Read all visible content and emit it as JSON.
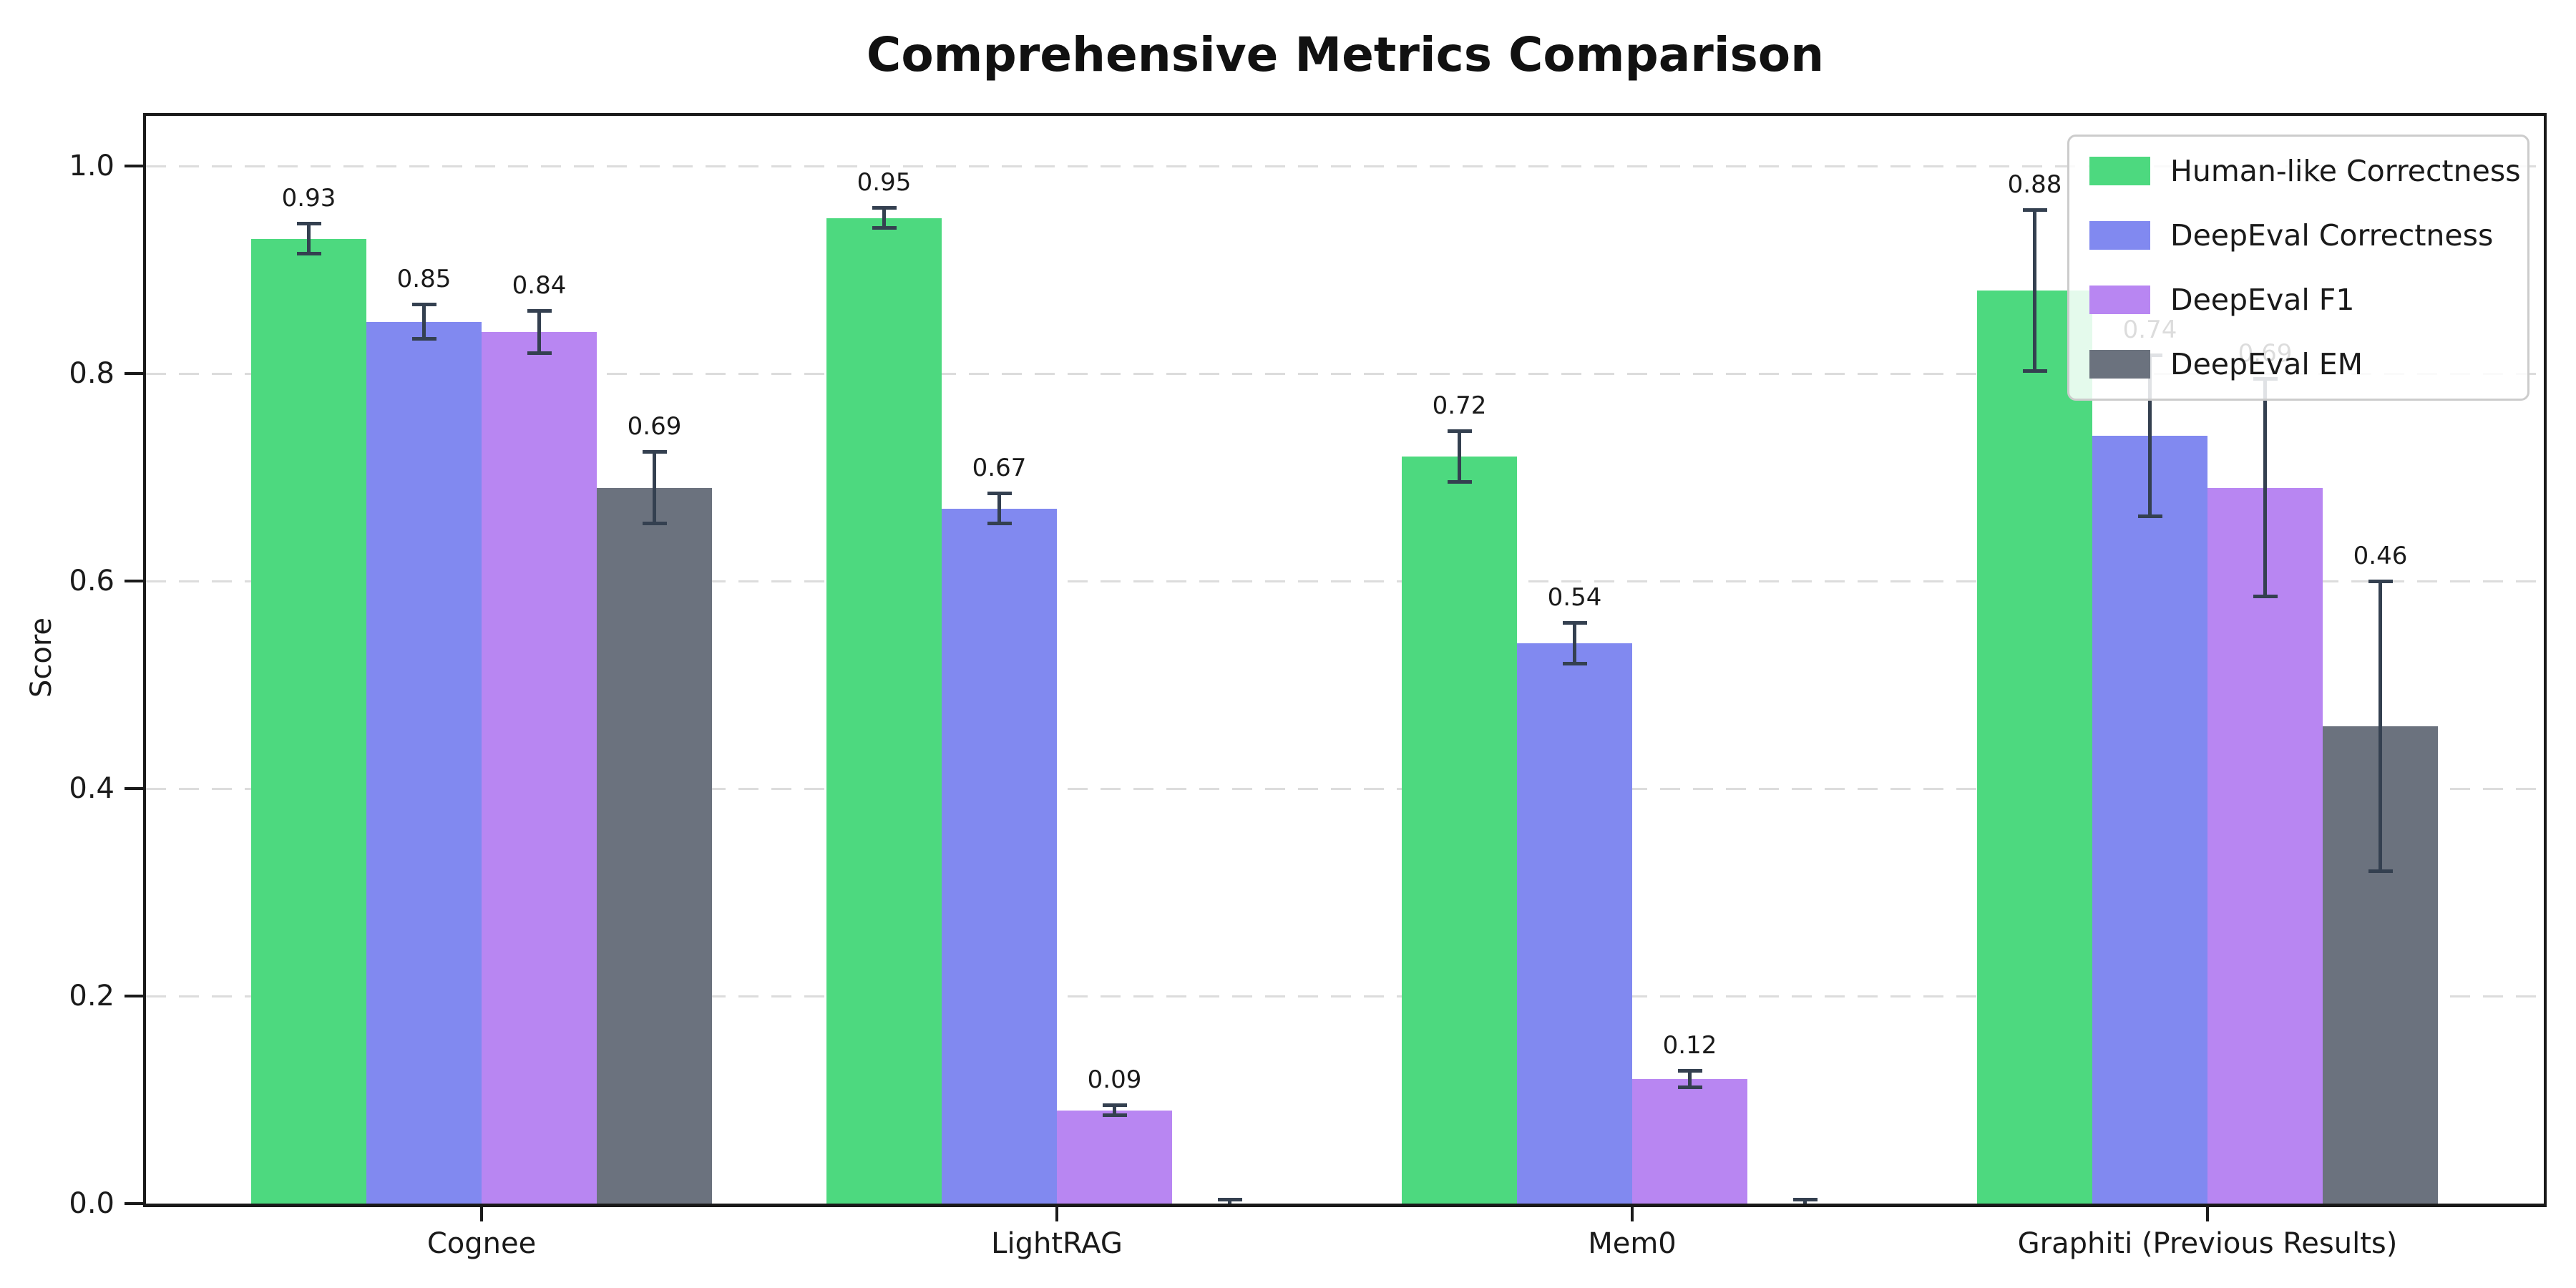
{
  "chart_data": {
    "type": "bar",
    "title": "Comprehensive Metrics Comparison",
    "ylabel": "Score",
    "xlabel": "",
    "categories": [
      "Cognee",
      "LightRAG",
      "Mem0",
      "Graphiti (Previous Results)"
    ],
    "series": [
      {
        "name": "Human-like Correctness",
        "color": "#4dd97f",
        "values": [
          0.93,
          0.95,
          0.72,
          0.88
        ],
        "errors": [
          0.015,
          0.01,
          0.025,
          0.078
        ],
        "labels": [
          "0.93",
          "0.95",
          "0.72",
          "0.88"
        ]
      },
      {
        "name": "DeepEval Correctness",
        "color": "#8189f0",
        "values": [
          0.85,
          0.67,
          0.54,
          0.74
        ],
        "errors": [
          0.017,
          0.015,
          0.02,
          0.078
        ],
        "labels": [
          "0.85",
          "0.67",
          "0.54",
          "0.74"
        ]
      },
      {
        "name": "DeepEval F1",
        "color": "#b886f2",
        "values": [
          0.84,
          0.09,
          0.12,
          0.69
        ],
        "errors": [
          0.021,
          0.005,
          0.008,
          0.105
        ],
        "labels": [
          "0.84",
          "0.09",
          "0.12",
          "0.69"
        ]
      },
      {
        "name": "DeepEval EM",
        "color": "#6b727e",
        "values": [
          0.69,
          0.0,
          0.0,
          0.46
        ],
        "errors": [
          0.035,
          0.004,
          0.004,
          0.14
        ],
        "labels": [
          "0.69",
          null,
          null,
          "0.46"
        ]
      }
    ],
    "y_ticks": [
      0.0,
      0.2,
      0.4,
      0.6,
      0.8,
      1.0
    ],
    "y_tick_labels": [
      "0.0",
      "0.2",
      "0.4",
      "0.6",
      "0.8",
      "1.0"
    ],
    "ylim": [
      0,
      1.05
    ],
    "grid": "horizontal-dashed",
    "grid_color": "#dcdcdc",
    "error_bar_color": "#344050",
    "legend_position": "upper-right"
  }
}
